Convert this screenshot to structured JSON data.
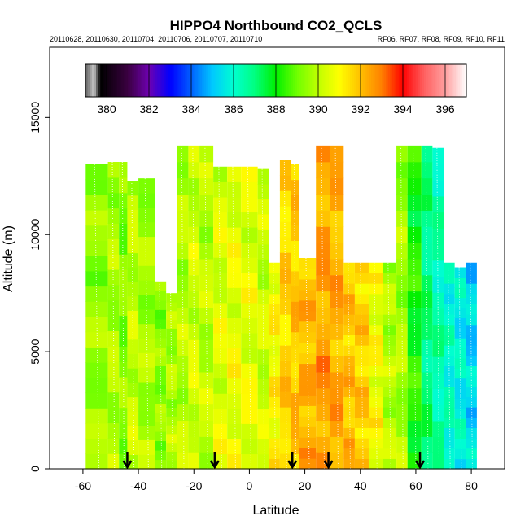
{
  "chart_data": {
    "type": "heatmap",
    "title": "HIPPO4 Northbound CO2_QCLS",
    "subtitle_left": "20110628, 20110630, 20110704, 20110706, 20110707, 20110710",
    "subtitle_right": "RF06, RF07, RF08, RF09, RF10, RF11",
    "xlabel": "Latitude",
    "ylabel": "Altitude (m)",
    "xlim": [
      -72,
      92
    ],
    "ylim": [
      0,
      18000
    ],
    "x_ticks": [
      "-60",
      "-40",
      "-20",
      "0",
      "20",
      "40",
      "60",
      "80"
    ],
    "x_tick_values": [
      -60,
      -40,
      -20,
      0,
      20,
      40,
      60,
      80
    ],
    "y_ticks": [
      "0",
      "5000",
      "10000",
      "15000"
    ],
    "y_tick_values": [
      0,
      5000,
      10000,
      15000
    ],
    "colorbar": {
      "range": [
        379,
        397
      ],
      "labels": [
        "380",
        "382",
        "384",
        "386",
        "388",
        "390",
        "392",
        "394",
        "396"
      ],
      "label_values": [
        380,
        382,
        384,
        386,
        388,
        390,
        392,
        394,
        396
      ],
      "stops": [
        {
          "v": 379.0,
          "c": "#606060"
        },
        {
          "v": 379.4,
          "c": "#c8c8c8"
        },
        {
          "v": 379.7,
          "c": "#000000"
        },
        {
          "v": 381.0,
          "c": "#3a0040"
        },
        {
          "v": 382.0,
          "c": "#6e00b0"
        },
        {
          "v": 383.0,
          "c": "#0000ff"
        },
        {
          "v": 384.0,
          "c": "#0060ff"
        },
        {
          "v": 385.0,
          "c": "#00c8ff"
        },
        {
          "v": 386.0,
          "c": "#00ffd0"
        },
        {
          "v": 387.0,
          "c": "#00ff80"
        },
        {
          "v": 388.0,
          "c": "#00f000"
        },
        {
          "v": 389.0,
          "c": "#70ff00"
        },
        {
          "v": 390.0,
          "c": "#c0ff00"
        },
        {
          "v": 391.0,
          "c": "#ffff00"
        },
        {
          "v": 392.0,
          "c": "#ffc000"
        },
        {
          "v": 393.0,
          "c": "#ff8000"
        },
        {
          "v": 394.0,
          "c": "#ff0000"
        },
        {
          "v": 395.0,
          "c": "#ff6060"
        },
        {
          "v": 396.0,
          "c": "#ffa0a0"
        },
        {
          "v": 397.0,
          "c": "#ffffff"
        }
      ]
    },
    "arrow_latitudes": [
      -44,
      -12.5,
      15.5,
      28.5,
      61.5
    ],
    "columns": [
      {
        "x0": -59,
        "x1": -51,
        "top": 13000,
        "v": 389.6
      },
      {
        "x0": -51,
        "x1": -47,
        "top": 13100,
        "v": 389.9
      },
      {
        "x0": -47,
        "x1": -44,
        "top": 13100,
        "v": 389.4
      },
      {
        "x0": -44,
        "x1": -40,
        "top": 12300,
        "v": 390.2
      },
      {
        "x0": -40,
        "x1": -34,
        "top": 12400,
        "v": 389.8
      },
      {
        "x0": -34,
        "x1": -30,
        "top": 8000,
        "v": 389.5
      },
      {
        "x0": -30,
        "x1": -26,
        "top": 7500,
        "v": 389.9
      },
      {
        "x0": -26,
        "x1": -22,
        "top": 13800,
        "v": 390.0
      },
      {
        "x0": -22,
        "x1": -18,
        "top": 13800,
        "v": 390.4
      },
      {
        "x0": -18,
        "x1": -13,
        "top": 13800,
        "v": 390.1
      },
      {
        "x0": -13,
        "x1": -8,
        "top": 12900,
        "v": 390.6
      },
      {
        "x0": -8,
        "x1": -3,
        "top": 12900,
        "v": 390.8
      },
      {
        "x0": -3,
        "x1": 3,
        "top": 12900,
        "v": 390.7
      },
      {
        "x0": 3,
        "x1": 7,
        "top": 12800,
        "v": 390.3
      },
      {
        "x0": 7,
        "x1": 11,
        "top": 8800,
        "v": 391.2
      },
      {
        "x0": 11,
        "x1": 15,
        "top": 13200,
        "v": 391.8
      },
      {
        "x0": 15,
        "x1": 18,
        "top": 13000,
        "v": 392.0
      },
      {
        "x0": 18,
        "x1": 24,
        "top": 9000,
        "v": 392.3
      },
      {
        "x0": 24,
        "x1": 29,
        "top": 13800,
        "v": 392.6
      },
      {
        "x0": 29,
        "x1": 34,
        "top": 13800,
        "v": 392.4
      },
      {
        "x0": 34,
        "x1": 38,
        "top": 8800,
        "v": 392.1
      },
      {
        "x0": 38,
        "x1": 43,
        "top": 8800,
        "v": 391.9
      },
      {
        "x0": 43,
        "x1": 48,
        "top": 8800,
        "v": 391.0
      },
      {
        "x0": 48,
        "x1": 53,
        "top": 8800,
        "v": 390.0
      },
      {
        "x0": 53,
        "x1": 57,
        "top": 13800,
        "v": 389.8
      },
      {
        "x0": 57,
        "x1": 62,
        "top": 13800,
        "v": 388.3
      },
      {
        "x0": 62,
        "x1": 66,
        "top": 13800,
        "v": 387.1
      },
      {
        "x0": 66,
        "x1": 70,
        "top": 13700,
        "v": 386.6
      },
      {
        "x0": 70,
        "x1": 74,
        "top": 8800,
        "v": 386.2
      },
      {
        "x0": 74,
        "x1": 78,
        "top": 8600,
        "v": 385.9
      },
      {
        "x0": 78,
        "x1": 82,
        "top": 8800,
        "v": 385.4
      }
    ]
  }
}
